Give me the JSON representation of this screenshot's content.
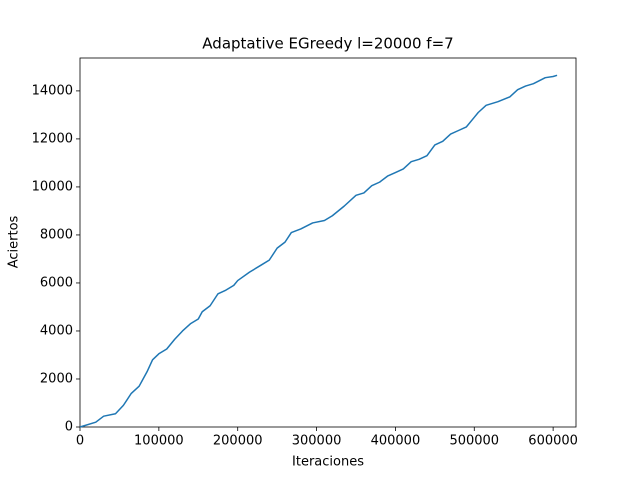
{
  "chart_data": {
    "type": "line",
    "title": "Adaptative EGreedy l=20000 f=7",
    "x_label": "Iteraciones",
    "y_label": "Aciertos",
    "x": [
      0,
      20000,
      30000,
      45000,
      55000,
      65000,
      75000,
      85000,
      92000,
      100000,
      110000,
      120000,
      130000,
      140000,
      150000,
      155000,
      165000,
      175000,
      185000,
      195000,
      200000,
      215000,
      230000,
      240000,
      250000,
      260000,
      268000,
      280000,
      295000,
      310000,
      320000,
      335000,
      350000,
      360000,
      370000,
      380000,
      390000,
      400000,
      410000,
      420000,
      430000,
      440000,
      450000,
      460000,
      470000,
      480000,
      490000,
      500000,
      505000,
      515000,
      530000,
      545000,
      555000,
      565000,
      575000,
      590000,
      600000,
      605000
    ],
    "values": [
      0,
      200,
      450,
      550,
      900,
      1400,
      1700,
      2300,
      2800,
      3050,
      3250,
      3650,
      4000,
      4300,
      4500,
      4800,
      5050,
      5550,
      5700,
      5900,
      6100,
      6450,
      6750,
      6950,
      7450,
      7700,
      8100,
      8250,
      8500,
      8600,
      8800,
      9200,
      9650,
      9750,
      10050,
      10200,
      10450,
      10600,
      10750,
      11050,
      11150,
      11300,
      11750,
      11900,
      12200,
      12350,
      12500,
      12900,
      13100,
      13400,
      13550,
      13750,
      14050,
      14200,
      14300,
      14550,
      14600,
      14650
    ],
    "color": "#1f77b4",
    "xlim": [
      0,
      629000
    ],
    "ylim": [
      0,
      15370
    ],
    "xticks": [
      0,
      100000,
      200000,
      300000,
      400000,
      500000,
      600000
    ],
    "yticks": [
      0,
      2000,
      4000,
      6000,
      8000,
      10000,
      12000,
      14000
    ],
    "grid": false
  }
}
